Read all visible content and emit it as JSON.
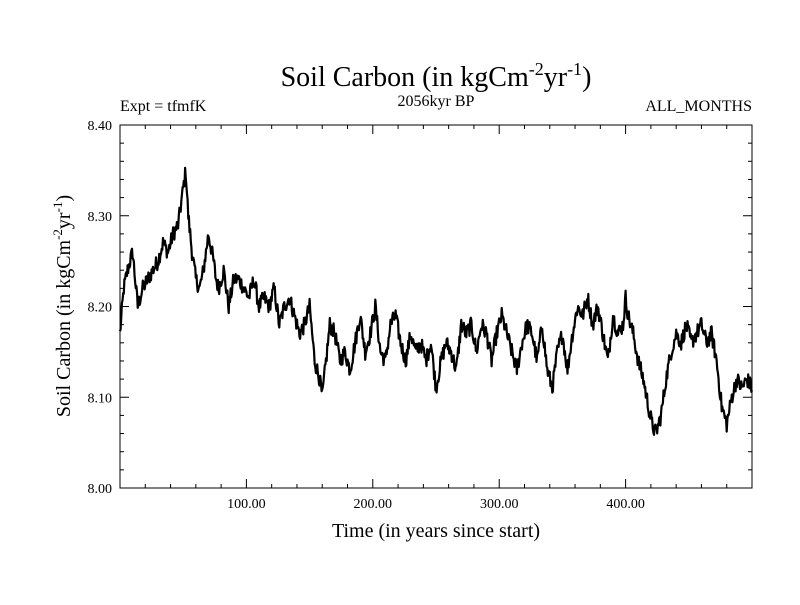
{
  "chart_data": {
    "type": "line",
    "title": "Soil Carbon (in kgCm",
    "title_sup1": "-2",
    "title_mid": "yr",
    "title_sup2": "-1",
    "title_end": ")",
    "subtitle_left": "Expt = tfmfK",
    "subtitle_center": "2056kyr BP",
    "subtitle_right": "ALL_MONTHS",
    "xlabel": "Time (in years since start)",
    "ylabel": "Soil Carbon (in kgCm",
    "ylabel_sup1": "-2",
    "ylabel_mid": "yr",
    "ylabel_sup2": "-1",
    "ylabel_end": ")",
    "xlim": [
      0,
      500
    ],
    "ylim": [
      8.0,
      8.4
    ],
    "xticks": [
      100,
      200,
      300,
      400
    ],
    "xtick_labels": [
      "100.00",
      "200.00",
      "300.00",
      "400.00"
    ],
    "yticks": [
      8.0,
      8.1,
      8.2,
      8.3,
      8.4
    ],
    "ytick_labels": [
      "8.00",
      "8.10",
      "8.20",
      "8.30",
      "8.40"
    ],
    "grid": false,
    "series": [
      {
        "name": "Soil Carbon",
        "color": "#000000",
        "x": [
          0,
          3,
          6,
          10,
          14,
          18,
          22,
          26,
          30,
          34,
          38,
          42,
          46,
          50,
          52,
          54,
          57,
          60,
          63,
          66,
          70,
          74,
          76,
          78,
          82,
          86,
          90,
          94,
          98,
          102,
          106,
          110,
          114,
          118,
          122,
          126,
          130,
          134,
          138,
          142,
          146,
          150,
          154,
          158,
          160,
          163,
          166,
          170,
          174,
          178,
          182,
          186,
          190,
          194,
          198,
          202,
          206,
          210,
          214,
          218,
          222,
          226,
          230,
          234,
          238,
          242,
          246,
          250,
          254,
          258,
          262,
          266,
          270,
          274,
          278,
          282,
          286,
          290,
          294,
          298,
          302,
          306,
          310,
          314,
          318,
          322,
          326,
          330,
          334,
          338,
          342,
          346,
          350,
          354,
          358,
          362,
          366,
          370,
          374,
          378,
          382,
          386,
          390,
          394,
          398,
          400,
          402,
          406,
          410,
          414,
          418,
          421,
          424,
          428,
          432,
          436,
          440,
          444,
          448,
          452,
          456,
          460,
          464,
          468,
          472,
          476,
          480,
          484,
          488,
          492,
          496,
          500
        ],
        "values": [
          8.17,
          8.22,
          8.24,
          8.26,
          8.2,
          8.22,
          8.23,
          8.24,
          8.25,
          8.27,
          8.26,
          8.28,
          8.29,
          8.33,
          8.35,
          8.3,
          8.26,
          8.23,
          8.22,
          8.24,
          8.28,
          8.25,
          8.23,
          8.22,
          8.24,
          8.2,
          8.23,
          8.23,
          8.22,
          8.21,
          8.23,
          8.2,
          8.21,
          8.2,
          8.22,
          8.18,
          8.2,
          8.21,
          8.19,
          8.17,
          8.18,
          8.2,
          8.14,
          8.12,
          8.1,
          8.14,
          8.18,
          8.17,
          8.14,
          8.15,
          8.13,
          8.16,
          8.19,
          8.15,
          8.17,
          8.2,
          8.15,
          8.14,
          8.18,
          8.19,
          8.16,
          8.14,
          8.17,
          8.15,
          8.16,
          8.14,
          8.16,
          8.11,
          8.14,
          8.16,
          8.15,
          8.13,
          8.18,
          8.17,
          8.18,
          8.15,
          8.18,
          8.17,
          8.14,
          8.17,
          8.19,
          8.17,
          8.15,
          8.13,
          8.16,
          8.18,
          8.17,
          8.14,
          8.18,
          8.13,
          8.11,
          8.15,
          8.17,
          8.13,
          8.17,
          8.2,
          8.19,
          8.21,
          8.18,
          8.2,
          8.17,
          8.14,
          8.19,
          8.17,
          8.18,
          8.21,
          8.19,
          8.17,
          8.14,
          8.12,
          8.09,
          8.07,
          8.06,
          8.08,
          8.12,
          8.15,
          8.17,
          8.16,
          8.18,
          8.16,
          8.17,
          8.18,
          8.16,
          8.17,
          8.14,
          8.09,
          8.07,
          8.1,
          8.12,
          8.11,
          8.12,
          8.11
        ]
      }
    ]
  }
}
